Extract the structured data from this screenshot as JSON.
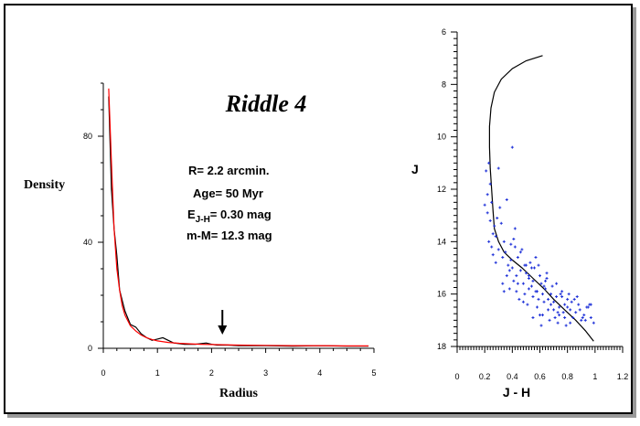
{
  "chart_data": [
    {
      "type": "line",
      "title": "Riddle 4",
      "xlabel": "Radius",
      "ylabel": "Density",
      "xlim": [
        0,
        5
      ],
      "ylim": [
        0,
        100
      ],
      "x_ticks": [
        "0",
        "1",
        "2",
        "3",
        "4",
        "5"
      ],
      "y_ticks": [
        "0",
        "40",
        "80"
      ],
      "grid": false,
      "annotations": {
        "params": [
          "R= 2.2 arcmin.",
          "Age= 50 Myr",
          "E",
          "J-H",
          "= 0.30 mag",
          "m-M= 12.3 mag"
        ],
        "arrow_at_radius": 2.2
      },
      "series": [
        {
          "color": "#000000",
          "x": [
            0.1,
            0.15,
            0.2,
            0.25,
            0.3,
            0.35,
            0.4,
            0.5,
            0.6,
            0.7,
            0.8,
            0.9,
            1.0,
            1.1,
            1.2,
            1.3,
            1.5,
            1.7,
            1.9,
            2.0,
            2.1,
            2.3,
            2.5,
            3.0,
            3.5,
            4.0,
            4.5,
            4.9
          ],
          "y": [
            95,
            60,
            45,
            35,
            22,
            18,
            14,
            9,
            8,
            5.5,
            4,
            3,
            3.5,
            4,
            3,
            2,
            1.5,
            1.5,
            2,
            1.5,
            1.2,
            1.2,
            1,
            1,
            0.8,
            1,
            0.8,
            0.8
          ]
        },
        {
          "color": "#ff0000",
          "x": [
            0.1,
            0.15,
            0.2,
            0.25,
            0.3,
            0.35,
            0.4,
            0.5,
            0.6,
            0.7,
            0.8,
            0.9,
            1.0,
            1.2,
            1.4,
            1.6,
            1.8,
            2.0,
            2.5,
            3.0,
            3.5,
            4.0,
            4.5,
            4.9
          ],
          "y": [
            98,
            70,
            45,
            30,
            22,
            16,
            12.5,
            8.5,
            6.5,
            5,
            4,
            3.3,
            2.8,
            2.2,
            1.9,
            1.7,
            1.5,
            1.4,
            1.2,
            1.1,
            1.0,
            1.0,
            0.9,
            0.9
          ]
        }
      ]
    },
    {
      "type": "scatter",
      "xlabel": "J - H",
      "ylabel": "J",
      "xlim": [
        0,
        1.2
      ],
      "ylim": [
        18,
        6
      ],
      "y_inverted": true,
      "x_ticks": [
        "0",
        "0.2",
        "0.4",
        "0.6",
        "0.8",
        "1",
        "1.2"
      ],
      "y_ticks": [
        "6",
        "8",
        "10",
        "12",
        "14",
        "16",
        "18"
      ],
      "grid": false,
      "isochrone": {
        "color": "#000000",
        "x": [
          0.62,
          0.5,
          0.4,
          0.32,
          0.27,
          0.245,
          0.235,
          0.235,
          0.24,
          0.25,
          0.26,
          0.27,
          0.3,
          0.34,
          0.4,
          0.47,
          0.55,
          0.63,
          0.7,
          0.78,
          0.86,
          0.93,
          0.99
        ],
        "y": [
          6.9,
          7.1,
          7.4,
          7.8,
          8.3,
          8.9,
          9.6,
          10.4,
          11.2,
          12.0,
          12.8,
          13.5,
          14.0,
          14.4,
          14.7,
          15.0,
          15.4,
          15.8,
          16.2,
          16.6,
          17.0,
          17.4,
          17.8
        ]
      },
      "points": {
        "color": "#1c2fd8",
        "x": [
          0.2,
          0.22,
          0.21,
          0.23,
          0.24,
          0.22,
          0.25,
          0.24,
          0.26,
          0.23,
          0.25,
          0.27,
          0.28,
          0.26,
          0.3,
          0.29,
          0.32,
          0.31,
          0.34,
          0.33,
          0.28,
          0.35,
          0.37,
          0.36,
          0.33,
          0.39,
          0.4,
          0.38,
          0.42,
          0.41,
          0.44,
          0.43,
          0.46,
          0.45,
          0.47,
          0.48,
          0.5,
          0.49,
          0.52,
          0.51,
          0.53,
          0.54,
          0.56,
          0.55,
          0.57,
          0.58,
          0.6,
          0.59,
          0.61,
          0.62,
          0.64,
          0.63,
          0.65,
          0.66,
          0.68,
          0.67,
          0.7,
          0.69,
          0.71,
          0.72,
          0.74,
          0.73,
          0.75,
          0.77,
          0.76,
          0.78,
          0.8,
          0.79,
          0.82,
          0.81,
          0.84,
          0.83,
          0.86,
          0.88,
          0.9,
          0.92,
          0.95,
          0.97,
          0.99,
          0.3,
          0.36,
          0.41,
          0.46,
          0.49,
          0.52,
          0.55,
          0.58,
          0.62,
          0.66,
          0.7,
          0.74,
          0.78,
          0.42,
          0.5,
          0.38,
          0.44,
          0.48,
          0.54,
          0.6,
          0.64,
          0.68,
          0.72,
          0.76,
          0.8,
          0.85,
          0.89,
          0.93,
          0.96,
          0.4,
          0.52,
          0.57,
          0.63,
          0.34,
          0.55,
          0.61,
          0.87,
          0.91,
          0.94,
          0.97,
          0.82,
          0.73,
          0.65,
          0.59,
          0.43,
          0.39
        ],
        "y": [
          12.6,
          12.2,
          11.3,
          11.0,
          11.8,
          12.9,
          12.5,
          13.2,
          13.7,
          14.0,
          14.2,
          13.4,
          13.8,
          14.5,
          14.3,
          13.1,
          13.3,
          12.7,
          14.0,
          14.6,
          14.8,
          14.4,
          14.9,
          15.3,
          15.6,
          14.7,
          15.0,
          15.8,
          14.2,
          15.5,
          14.6,
          15.9,
          15.1,
          16.2,
          14.3,
          15.6,
          15.2,
          16.0,
          15.4,
          16.4,
          14.8,
          15.7,
          15.0,
          16.1,
          15.9,
          16.5,
          15.3,
          16.2,
          15.6,
          16.8,
          15.8,
          16.3,
          15.4,
          16.6,
          16.0,
          17.0,
          16.3,
          15.7,
          16.9,
          16.1,
          16.5,
          17.1,
          16.0,
          16.7,
          15.9,
          16.4,
          16.2,
          17.2,
          16.6,
          16.0,
          16.9,
          16.3,
          16.7,
          16.4,
          17.0,
          16.8,
          16.5,
          16.9,
          17.1,
          11.2,
          12.4,
          13.9,
          14.4,
          14.9,
          15.3,
          15.5,
          15.9,
          16.0,
          16.2,
          16.6,
          16.8,
          16.9,
          13.5,
          14.9,
          15.1,
          15.6,
          16.3,
          15.0,
          16.8,
          15.5,
          16.4,
          15.6,
          16.1,
          16.5,
          16.2,
          16.6,
          17.0,
          16.4,
          10.4,
          15.8,
          14.6,
          15.7,
          15.9,
          16.9,
          17.2,
          16.1,
          16.9,
          16.5,
          16.4,
          17.1,
          16.7,
          15.2,
          14.9,
          15.3,
          14.1
        ]
      }
    }
  ]
}
